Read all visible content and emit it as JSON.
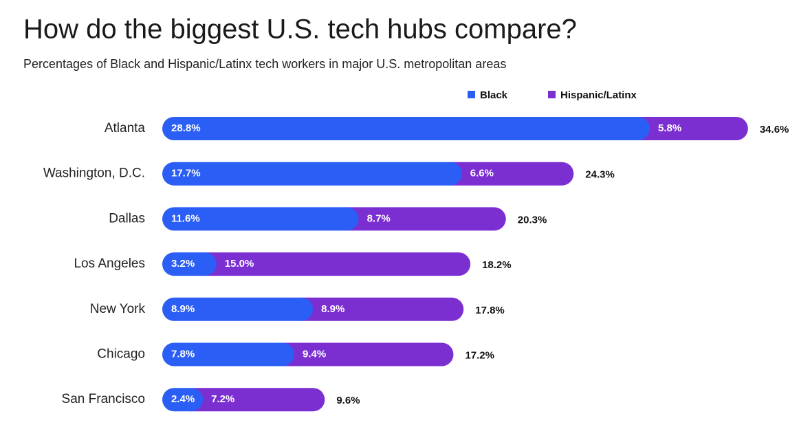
{
  "chart_data": {
    "type": "stacked-bar-horizontal",
    "title": "How do the biggest U.S. tech hubs compare?",
    "subtitle": "Percentages of Black and Hispanic/Latinx tech workers in major U.S. metropolitan areas",
    "categories": [
      "Atlanta",
      "Washington, D.C.",
      "Dallas",
      "Los Angeles",
      "New York",
      "Chicago",
      "San Francisco"
    ],
    "series": [
      {
        "name": "Black",
        "color": "#2a5ef5",
        "values": [
          28.8,
          17.7,
          11.6,
          3.2,
          8.9,
          7.8,
          2.4
        ],
        "value_labels": [
          "28.8%",
          "17.7%",
          "11.6%",
          "3.2%",
          "8.9%",
          "7.8%",
          "2.4%"
        ]
      },
      {
        "name": "Hispanic/Latinx",
        "color": "#7b2fd1",
        "values": [
          5.8,
          6.6,
          8.7,
          15.0,
          8.9,
          9.4,
          7.2
        ],
        "value_labels": [
          "5.8%",
          "6.6%",
          "8.7%",
          "15.0%",
          "8.9%",
          "9.4%",
          "7.2%"
        ]
      }
    ],
    "totals": {
      "values": [
        34.6,
        24.3,
        20.3,
        18.2,
        17.8,
        17.2,
        9.6
      ],
      "value_labels": [
        "34.6%",
        "24.3%",
        "20.3%",
        "18.2%",
        "17.8%",
        "17.2%",
        "9.6%"
      ]
    }
  }
}
